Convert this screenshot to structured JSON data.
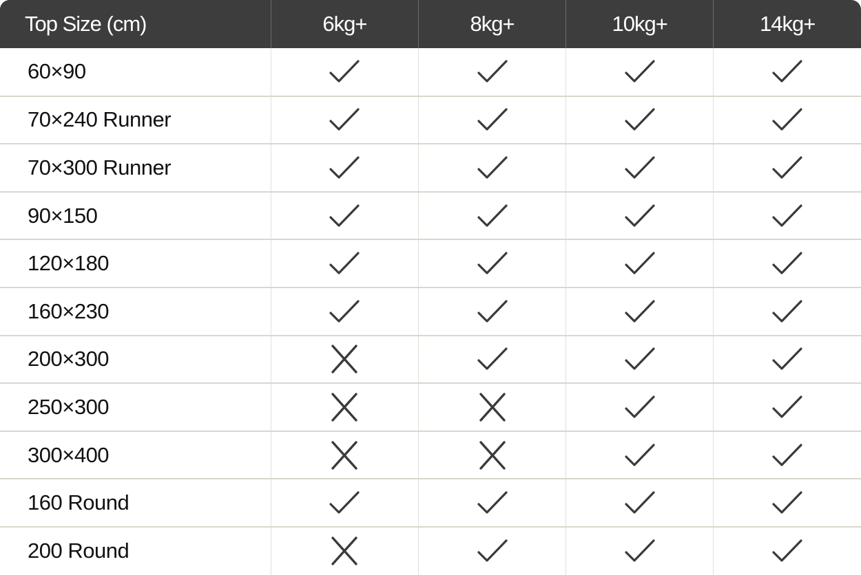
{
  "header": [
    "Top Size (cm)",
    "6kg+",
    "8kg+",
    "10kg+",
    "14kg+"
  ],
  "icon_color": "#3a3a3a",
  "rows": [
    {
      "size": "60×90",
      "values": [
        true,
        true,
        true,
        true
      ]
    },
    {
      "size": "70×240 Runner",
      "values": [
        true,
        true,
        true,
        true
      ]
    },
    {
      "size": "70×300 Runner",
      "values": [
        true,
        true,
        true,
        true
      ]
    },
    {
      "size": "90×150",
      "values": [
        true,
        true,
        true,
        true
      ]
    },
    {
      "size": "120×180",
      "values": [
        true,
        true,
        true,
        true
      ]
    },
    {
      "size": "160×230",
      "values": [
        true,
        true,
        true,
        true
      ]
    },
    {
      "size": "200×300",
      "values": [
        false,
        true,
        true,
        true
      ]
    },
    {
      "size": "250×300",
      "values": [
        false,
        false,
        true,
        true
      ]
    },
    {
      "size": "300×400",
      "values": [
        false,
        false,
        true,
        true
      ]
    },
    {
      "size": "160 Round",
      "values": [
        true,
        true,
        true,
        true
      ]
    },
    {
      "size": "200 Round",
      "values": [
        false,
        true,
        true,
        true
      ]
    }
  ]
}
